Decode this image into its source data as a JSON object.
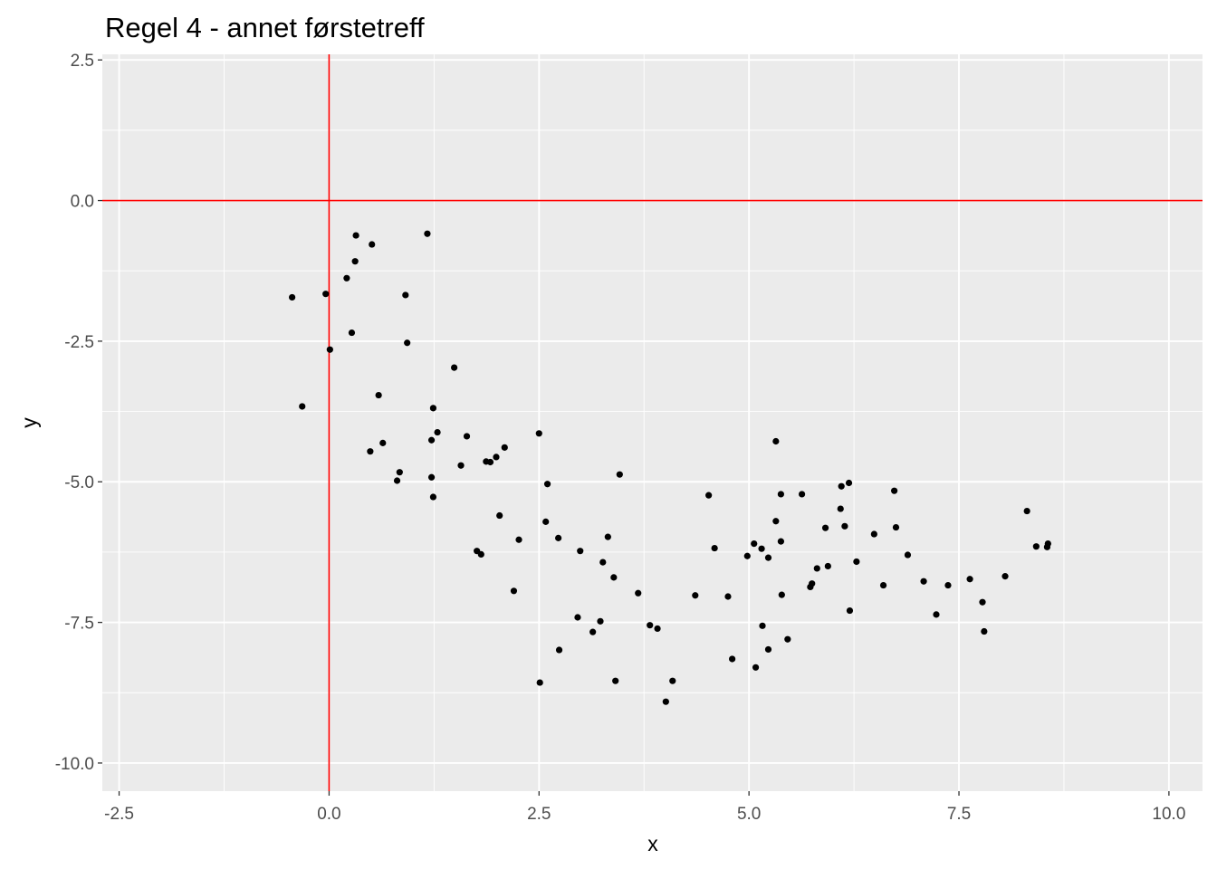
{
  "colors": {
    "panel": "#ebebeb",
    "grid": "#ffffff",
    "point": "#000000",
    "ref_line": "#ff0000",
    "tick": "#333333",
    "tick_text": "#4d4d4d"
  },
  "chart_data": {
    "type": "scatter",
    "title": "Regel 4 - annet førstetreff",
    "xlabel": "x",
    "ylabel": "y",
    "xlim": [
      -2.7,
      10.4
    ],
    "ylim": [
      -10.5,
      2.6
    ],
    "x_ticks": [
      -2.5,
      0.0,
      2.5,
      5.0,
      7.5,
      10.0
    ],
    "x_tick_labels": [
      "-2.5",
      "0.0",
      "2.5",
      "5.0",
      "7.5",
      "10.0"
    ],
    "y_ticks": [
      -10.0,
      -7.5,
      -5.0,
      -2.5,
      0.0,
      2.5
    ],
    "y_tick_labels": [
      "-10.0",
      "-7.5",
      "-5.0",
      "-2.5",
      "0.0",
      "2.5"
    ],
    "grid": true,
    "reference_lines": {
      "x": 0,
      "y": 0
    },
    "points": [
      [
        -0.44,
        -1.72
      ],
      [
        -0.32,
        -3.66
      ],
      [
        -0.04,
        -1.66
      ],
      [
        0.01,
        -2.65
      ],
      [
        0.21,
        -1.38
      ],
      [
        0.27,
        -2.35
      ],
      [
        0.31,
        -1.08
      ],
      [
        0.32,
        -0.62
      ],
      [
        0.51,
        -0.78
      ],
      [
        0.49,
        -4.46
      ],
      [
        0.59,
        -3.46
      ],
      [
        0.64,
        -4.31
      ],
      [
        0.81,
        -4.98
      ],
      [
        0.84,
        -4.83
      ],
      [
        0.91,
        -1.68
      ],
      [
        0.93,
        -2.53
      ],
      [
        1.17,
        -0.59
      ],
      [
        1.22,
        -4.26
      ],
      [
        1.22,
        -4.92
      ],
      [
        1.24,
        -3.69
      ],
      [
        1.24,
        -5.27
      ],
      [
        1.29,
        -4.12
      ],
      [
        1.49,
        -2.97
      ],
      [
        1.57,
        -4.71
      ],
      [
        1.64,
        -4.19
      ],
      [
        1.76,
        -6.23
      ],
      [
        1.81,
        -6.29
      ],
      [
        1.87,
        -4.64
      ],
      [
        1.92,
        -4.65
      ],
      [
        1.99,
        -4.56
      ],
      [
        2.03,
        -5.6
      ],
      [
        2.09,
        -4.39
      ],
      [
        2.2,
        -6.94
      ],
      [
        2.26,
        -6.03
      ],
      [
        2.5,
        -4.14
      ],
      [
        2.51,
        -8.57
      ],
      [
        2.58,
        -5.71
      ],
      [
        2.6,
        -5.04
      ],
      [
        2.73,
        -6.0
      ],
      [
        2.74,
        -7.99
      ],
      [
        2.96,
        -7.41
      ],
      [
        2.99,
        -6.23
      ],
      [
        3.14,
        -7.67
      ],
      [
        3.23,
        -7.48
      ],
      [
        3.26,
        -6.43
      ],
      [
        3.32,
        -5.98
      ],
      [
        3.39,
        -6.7
      ],
      [
        3.41,
        -8.54
      ],
      [
        3.46,
        -4.87
      ],
      [
        3.68,
        -6.98
      ],
      [
        3.82,
        -7.55
      ],
      [
        3.91,
        -7.61
      ],
      [
        4.01,
        -8.91
      ],
      [
        4.09,
        -8.54
      ],
      [
        4.36,
        -7.02
      ],
      [
        4.52,
        -5.24
      ],
      [
        4.59,
        -6.18
      ],
      [
        4.75,
        -7.04
      ],
      [
        4.8,
        -8.15
      ],
      [
        4.98,
        -6.32
      ],
      [
        5.06,
        -6.1
      ],
      [
        5.08,
        -8.3
      ],
      [
        5.15,
        -6.19
      ],
      [
        5.16,
        -7.56
      ],
      [
        5.23,
        -6.35
      ],
      [
        5.23,
        -7.98
      ],
      [
        5.32,
        -4.28
      ],
      [
        5.32,
        -5.7
      ],
      [
        5.38,
        -5.22
      ],
      [
        5.38,
        -6.06
      ],
      [
        5.39,
        -7.01
      ],
      [
        5.46,
        -7.8
      ],
      [
        5.63,
        -5.22
      ],
      [
        5.73,
        -6.87
      ],
      [
        5.75,
        -6.81
      ],
      [
        5.81,
        -6.54
      ],
      [
        5.91,
        -5.82
      ],
      [
        5.94,
        -6.5
      ],
      [
        6.09,
        -5.48
      ],
      [
        6.1,
        -5.08
      ],
      [
        6.14,
        -5.79
      ],
      [
        6.19,
        -5.02
      ],
      [
        6.2,
        -7.29
      ],
      [
        6.28,
        -6.42
      ],
      [
        6.49,
        -5.93
      ],
      [
        6.6,
        -6.84
      ],
      [
        6.73,
        -5.16
      ],
      [
        6.75,
        -5.81
      ],
      [
        6.89,
        -6.3
      ],
      [
        7.08,
        -6.77
      ],
      [
        7.23,
        -7.36
      ],
      [
        7.37,
        -6.84
      ],
      [
        7.63,
        -6.73
      ],
      [
        7.78,
        -7.14
      ],
      [
        7.8,
        -7.66
      ],
      [
        8.05,
        -6.68
      ],
      [
        8.31,
        -5.52
      ],
      [
        8.42,
        -6.15
      ],
      [
        8.55,
        -6.16
      ],
      [
        8.56,
        -6.1
      ]
    ]
  }
}
